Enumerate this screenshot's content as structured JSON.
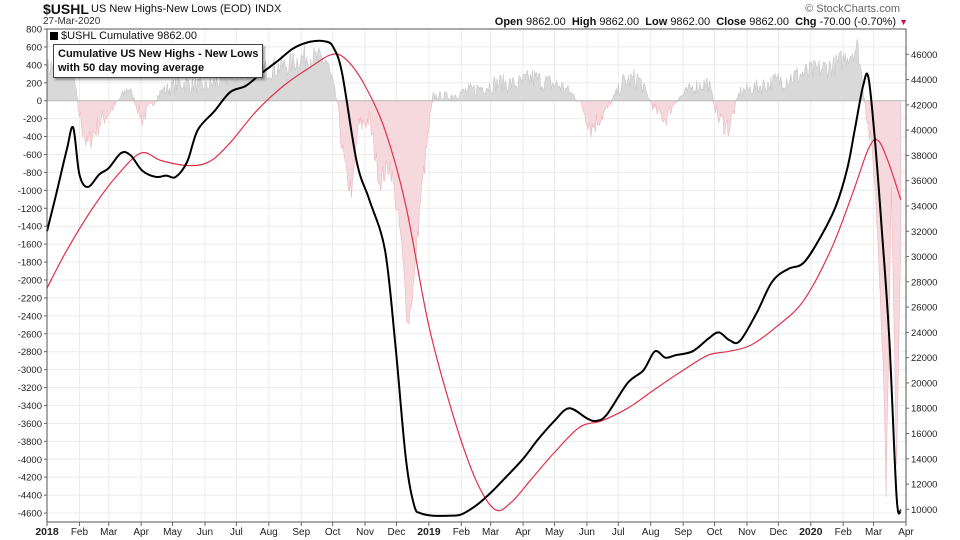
{
  "header": {
    "symbol": "$USHL",
    "description": "US New Highs-New Lows (EOD)",
    "exchange": "INDX",
    "date": "27-Mar-2020",
    "credit": "© StockCharts.com",
    "open_label": "Open",
    "open": "9862.00",
    "high_label": "High",
    "high": "9862.00",
    "low_label": "Low",
    "low": "9862.00",
    "close_label": "Close",
    "close": "9862.00",
    "chg_label": "Chg",
    "chg": "-70.00 (-0.70%)",
    "chg_arrow": "▼"
  },
  "legend": {
    "text": "$USHL Cumulative 9862.00"
  },
  "annotation": {
    "line1": "Cumulative US New Highs - New Lows",
    "line2": "with 50 day moving average"
  },
  "colors": {
    "cumulative": "#000000",
    "ma": "#e0314b",
    "pos_area": "#d9d9d9",
    "neg_area": "#f6d9dc",
    "grid": "#ececec"
  },
  "chart_data": {
    "type": "line",
    "title": "Cumulative US New Highs - New Lows with 50 day moving average",
    "x_axis": {
      "range": [
        "2018-01-01",
        "2020-04-01"
      ],
      "tick_labels": [
        "2018",
        "Feb",
        "Mar",
        "Apr",
        "May",
        "Jun",
        "Jul",
        "Aug",
        "Sep",
        "Oct",
        "Nov",
        "Dec",
        "2019",
        "Feb",
        "Mar",
        "Apr",
        "May",
        "Jun",
        "Jul",
        "Aug",
        "Sep",
        "Oct",
        "Nov",
        "Dec",
        "2020",
        "Feb",
        "Mar",
        "Apr"
      ],
      "bold_labels": [
        "2018",
        "2019",
        "2020"
      ]
    },
    "left_axis": {
      "ylim": [
        -4700,
        800
      ],
      "ticks": [
        800,
        600,
        400,
        200,
        0,
        -200,
        -400,
        -600,
        -800,
        -1000,
        -1200,
        -1400,
        -1600,
        -1800,
        -2000,
        -2200,
        -2400,
        -2600,
        -2800,
        -3000,
        -3200,
        -3400,
        -3600,
        -3800,
        -4000,
        -4200,
        -4400,
        -4600
      ]
    },
    "right_axis": {
      "ylim": [
        9000,
        48000
      ],
      "ticks": [
        46000,
        44000,
        42000,
        40000,
        38000,
        36000,
        34000,
        32000,
        30000,
        28000,
        26000,
        24000,
        22000,
        20000,
        18000,
        16000,
        14000,
        12000,
        10000
      ]
    },
    "grid": true,
    "series": [
      {
        "name": "$USHL Cumulative",
        "axis": "right",
        "x": [
          "2018-01-01",
          "2018-01-10",
          "2018-01-20",
          "2018-01-26",
          "2018-02-01",
          "2018-02-09",
          "2018-02-20",
          "2018-03-01",
          "2018-03-13",
          "2018-03-22",
          "2018-04-02",
          "2018-04-15",
          "2018-04-25",
          "2018-05-04",
          "2018-05-15",
          "2018-05-25",
          "2018-06-10",
          "2018-06-25",
          "2018-07-10",
          "2018-07-25",
          "2018-08-10",
          "2018-08-25",
          "2018-09-10",
          "2018-09-25",
          "2018-10-02",
          "2018-10-10",
          "2018-10-24",
          "2018-11-05",
          "2018-11-20",
          "2018-11-30",
          "2018-12-10",
          "2018-12-18",
          "2018-12-24",
          "2019-01-05",
          "2019-01-20",
          "2019-02-01",
          "2019-02-15",
          "2019-03-01",
          "2019-03-15",
          "2019-04-01",
          "2019-04-15",
          "2019-05-01",
          "2019-05-15",
          "2019-06-01",
          "2019-06-10",
          "2019-06-20",
          "2019-07-10",
          "2019-07-25",
          "2019-08-05",
          "2019-08-15",
          "2019-08-25",
          "2019-09-10",
          "2019-09-25",
          "2019-10-05",
          "2019-10-15",
          "2019-10-25",
          "2019-11-10",
          "2019-11-25",
          "2019-12-10",
          "2019-12-25",
          "2020-01-10",
          "2020-01-25",
          "2020-02-05",
          "2020-02-12",
          "2020-02-20",
          "2020-02-25",
          "2020-03-02",
          "2020-03-09",
          "2020-03-16",
          "2020-03-23",
          "2020-03-27"
        ],
        "values": [
          32000,
          35000,
          38500,
          40200,
          36500,
          35500,
          36500,
          37000,
          38200,
          38000,
          36800,
          36300,
          36400,
          36300,
          37500,
          40000,
          41500,
          43000,
          43500,
          44500,
          45500,
          46500,
          47000,
          47000,
          46500,
          44500,
          37500,
          34500,
          30500,
          23000,
          14000,
          10300,
          9700,
          9500,
          9500,
          9600,
          10300,
          11300,
          12500,
          14000,
          15500,
          17000,
          18000,
          17200,
          17000,
          17500,
          20000,
          21000,
          22500,
          22000,
          22200,
          22500,
          23500,
          24000,
          23400,
          23300,
          25500,
          28000,
          29000,
          29500,
          31500,
          34000,
          37000,
          40000,
          43500,
          44200,
          39500,
          32000,
          23500,
          11000,
          9900
        ]
      },
      {
        "name": "50 day moving average",
        "axis": "right",
        "x": [
          "2018-01-01",
          "2018-01-20",
          "2018-02-15",
          "2018-03-10",
          "2018-04-01",
          "2018-04-20",
          "2018-05-15",
          "2018-06-05",
          "2018-06-25",
          "2018-07-20",
          "2018-08-15",
          "2018-09-10",
          "2018-10-01",
          "2018-10-15",
          "2018-11-01",
          "2018-11-20",
          "2018-12-10",
          "2019-01-01",
          "2019-01-25",
          "2019-02-15",
          "2019-03-05",
          "2019-03-20",
          "2019-04-10",
          "2019-05-01",
          "2019-05-25",
          "2019-06-15",
          "2019-07-10",
          "2019-08-05",
          "2019-09-01",
          "2019-09-25",
          "2019-10-15",
          "2019-11-05",
          "2019-11-30",
          "2019-12-25",
          "2020-01-20",
          "2020-02-10",
          "2020-02-25",
          "2020-03-05",
          "2020-03-15",
          "2020-03-27"
        ],
        "values": [
          27500,
          30500,
          34000,
          36500,
          38200,
          37600,
          37200,
          37500,
          39000,
          41500,
          43500,
          45000,
          46000,
          45500,
          43500,
          40000,
          34000,
          24500,
          17200,
          12300,
          10000,
          10500,
          12500,
          14500,
          16500,
          17000,
          18000,
          19500,
          21000,
          22200,
          22500,
          23000,
          24500,
          26500,
          30500,
          35000,
          38500,
          39200,
          37500,
          34500
        ]
      },
      {
        "name": "US New Highs-New Lows",
        "axis": "left",
        "style": "area",
        "x": [
          "2018-01-01",
          "2018-01-15",
          "2018-01-26",
          "2018-02-01",
          "2018-02-08",
          "2018-02-20",
          "2018-03-05",
          "2018-03-20",
          "2018-04-02",
          "2018-04-20",
          "2018-05-10",
          "2018-06-01",
          "2018-06-20",
          "2018-07-10",
          "2018-07-30",
          "2018-08-20",
          "2018-09-05",
          "2018-09-25",
          "2018-10-05",
          "2018-10-10",
          "2018-10-15",
          "2018-10-20",
          "2018-10-25",
          "2018-11-05",
          "2018-11-15",
          "2018-11-25",
          "2018-12-05",
          "2018-12-12",
          "2018-12-18",
          "2018-12-24",
          "2019-01-05",
          "2019-01-20",
          "2019-02-05",
          "2019-02-20",
          "2019-03-10",
          "2019-03-25",
          "2019-04-10",
          "2019-04-25",
          "2019-05-10",
          "2019-05-25",
          "2019-06-05",
          "2019-06-20",
          "2019-07-05",
          "2019-07-20",
          "2019-08-05",
          "2019-08-15",
          "2019-08-25",
          "2019-09-10",
          "2019-09-25",
          "2019-10-05",
          "2019-10-15",
          "2019-10-25",
          "2019-11-10",
          "2019-11-25",
          "2019-12-10",
          "2019-12-25",
          "2020-01-10",
          "2020-01-25",
          "2020-02-05",
          "2020-02-15",
          "2020-02-24",
          "2020-03-01",
          "2020-03-05",
          "2020-03-10",
          "2020-03-13",
          "2020-03-18",
          "2020-03-23",
          "2020-03-27"
        ],
        "values": [
          350,
          450,
          300,
          -150,
          -500,
          -250,
          -80,
          150,
          -200,
          100,
          200,
          150,
          250,
          300,
          350,
          400,
          500,
          450,
          0,
          -500,
          -900,
          -1000,
          -300,
          -200,
          -900,
          -700,
          -1500,
          -2500,
          -2000,
          -1100,
          50,
          50,
          100,
          150,
          200,
          180,
          250,
          200,
          150,
          0,
          -300,
          -100,
          200,
          250,
          -100,
          -200,
          0,
          150,
          200,
          -200,
          -300,
          100,
          150,
          200,
          250,
          300,
          350,
          400,
          500,
          600,
          -200,
          -700,
          -1500,
          -2800,
          -4300,
          -1000,
          -4000,
          -1500
        ]
      }
    ]
  }
}
